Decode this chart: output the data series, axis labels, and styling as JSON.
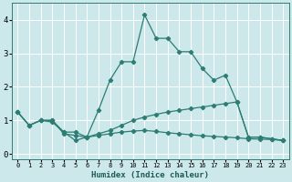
{
  "xlabel": "Humidex (Indice chaleur)",
  "background_color": "#cce8ea",
  "grid_color": "#ffffff",
  "line_color": "#2d7d74",
  "xlim": [
    -0.5,
    23.5
  ],
  "ylim": [
    -0.15,
    4.5
  ],
  "xticks": [
    0,
    1,
    2,
    3,
    4,
    5,
    6,
    7,
    8,
    9,
    10,
    11,
    12,
    13,
    14,
    15,
    16,
    17,
    18,
    19,
    20,
    21,
    22,
    23
  ],
  "yticks": [
    0,
    1,
    2,
    3,
    4
  ],
  "curve1_x": [
    0,
    1,
    2,
    3,
    4,
    5,
    6,
    7,
    8,
    9,
    10,
    11,
    12,
    13,
    14,
    15,
    16,
    17,
    18,
    19,
    20,
    21,
    22,
    23
  ],
  "curve1_y": [
    1.25,
    0.85,
    1.0,
    1.0,
    0.65,
    0.65,
    0.5,
    1.3,
    2.2,
    2.75,
    2.75,
    4.15,
    3.45,
    3.45,
    3.05,
    3.05,
    2.55,
    2.2,
    2.35,
    1.55,
    0.5,
    0.5,
    0.45,
    0.4
  ],
  "curve2_x": [
    0,
    1,
    2,
    3,
    4,
    5,
    6,
    7,
    8,
    9,
    10,
    11,
    12,
    13,
    14,
    15,
    16,
    17,
    18,
    19,
    20,
    21,
    22,
    23
  ],
  "curve2_y": [
    1.25,
    0.85,
    1.0,
    1.0,
    0.6,
    0.55,
    0.5,
    0.6,
    0.7,
    0.85,
    1.0,
    1.1,
    1.18,
    1.25,
    1.3,
    1.35,
    1.4,
    1.45,
    1.5,
    1.55,
    0.5,
    0.5,
    0.45,
    0.4
  ],
  "curve3_x": [
    0,
    1,
    2,
    3,
    4,
    5,
    6,
    7,
    8,
    9,
    10,
    11,
    12,
    13,
    14,
    15,
    16,
    17,
    18,
    19,
    20,
    21,
    22,
    23
  ],
  "curve3_y": [
    1.25,
    0.85,
    1.0,
    0.95,
    0.65,
    0.4,
    0.5,
    0.55,
    0.6,
    0.65,
    0.68,
    0.7,
    0.67,
    0.63,
    0.6,
    0.57,
    0.54,
    0.52,
    0.5,
    0.48,
    0.45,
    0.44,
    0.43,
    0.4
  ]
}
